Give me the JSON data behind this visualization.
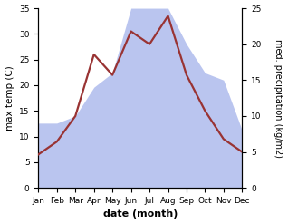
{
  "months": [
    "Jan",
    "Feb",
    "Mar",
    "Apr",
    "May",
    "Jun",
    "Jul",
    "Aug",
    "Sep",
    "Oct",
    "Nov",
    "Dec"
  ],
  "temperature": [
    6.5,
    9.0,
    14.0,
    26.0,
    22.0,
    30.5,
    28.0,
    33.5,
    22.0,
    15.0,
    9.5,
    7.0
  ],
  "precipitation": [
    9,
    9,
    10,
    14,
    16,
    25,
    25,
    25,
    20,
    16,
    15,
    8
  ],
  "temp_color": "#993333",
  "precip_color": "#b3bfee",
  "left_label": "max temp (C)",
  "right_label": "med. precipitation (kg/m2)",
  "xlabel": "date (month)",
  "ylim_left": [
    0,
    35
  ],
  "ylim_right": [
    0,
    25
  ],
  "yticks_left": [
    0,
    5,
    10,
    15,
    20,
    25,
    30,
    35
  ],
  "yticks_right": [
    0,
    5,
    10,
    15,
    20,
    25
  ],
  "background_color": "#ffffff"
}
